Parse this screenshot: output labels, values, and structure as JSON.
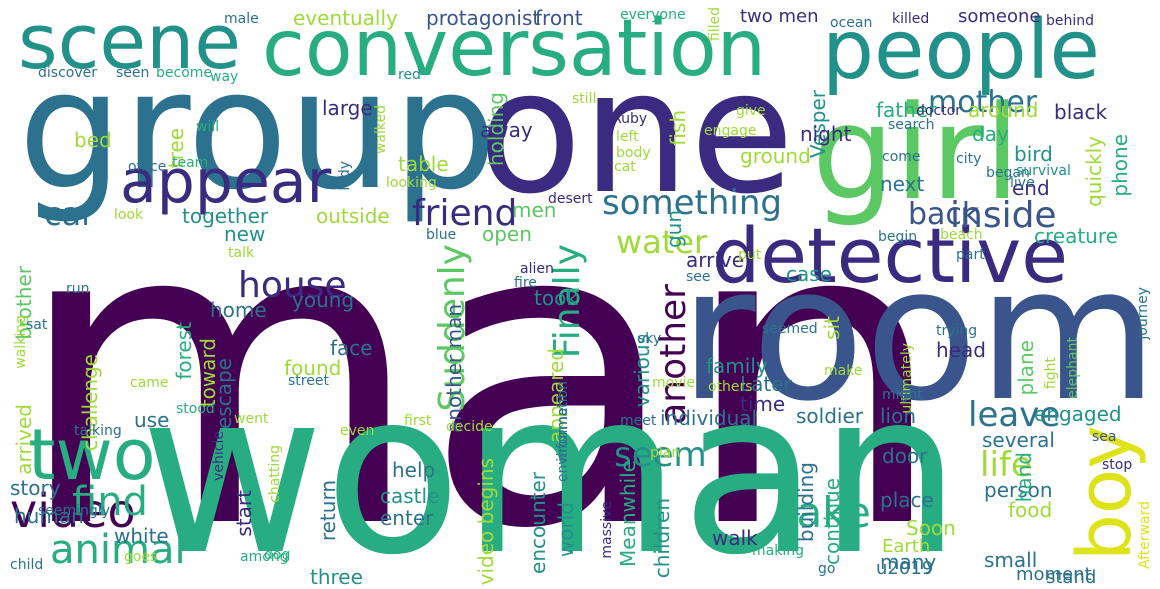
{
  "palette": {
    "dark_purple": "#440154",
    "indigo": "#3b2b80",
    "blue": "#3a548c",
    "teal_blue": "#2c728e",
    "teal": "#22918a",
    "sea_green": "#27ad81",
    "green": "#5cc863",
    "lime": "#a0da39",
    "yellow": "#dde318"
  },
  "words": [
    {
      "text": "man"
    },
    {
      "text": "woman"
    },
    {
      "text": "room"
    },
    {
      "text": "group"
    },
    {
      "text": "one"
    },
    {
      "text": "girl"
    },
    {
      "text": "conversation"
    },
    {
      "text": "people"
    },
    {
      "text": "scene"
    },
    {
      "text": "detective"
    },
    {
      "text": "appear"
    },
    {
      "text": "boy"
    },
    {
      "text": "two"
    },
    {
      "text": "video"
    },
    {
      "text": "animal"
    },
    {
      "text": "find"
    },
    {
      "text": "friend"
    },
    {
      "text": "something"
    },
    {
      "text": "house"
    },
    {
      "text": "take"
    },
    {
      "text": "inside"
    },
    {
      "text": "back"
    },
    {
      "text": "car"
    },
    {
      "text": "water"
    },
    {
      "text": "seem"
    },
    {
      "text": "life"
    },
    {
      "text": "leave"
    },
    {
      "text": "Finally"
    },
    {
      "text": "another"
    },
    {
      "text": "Suddenly"
    },
    {
      "text": "mother"
    },
    {
      "text": "eventually"
    },
    {
      "text": "protagonist"
    },
    {
      "text": "front"
    },
    {
      "text": "two men"
    },
    {
      "text": "someone"
    },
    {
      "text": "Vesper"
    },
    {
      "text": "gun"
    },
    {
      "text": "fish"
    },
    {
      "text": "father"
    },
    {
      "text": "around"
    },
    {
      "text": "black"
    },
    {
      "text": "night"
    },
    {
      "text": "large"
    },
    {
      "text": "away"
    },
    {
      "text": "holding"
    },
    {
      "text": "open"
    },
    {
      "text": "table"
    },
    {
      "text": "ground"
    },
    {
      "text": "day"
    },
    {
      "text": "bird"
    },
    {
      "text": "quickly"
    },
    {
      "text": "phone"
    },
    {
      "text": "end"
    },
    {
      "text": "next"
    },
    {
      "text": "together"
    },
    {
      "text": "outside"
    },
    {
      "text": "men"
    },
    {
      "text": "tree"
    },
    {
      "text": "bed"
    },
    {
      "text": "new"
    },
    {
      "text": "creature"
    },
    {
      "text": "case"
    },
    {
      "text": "arrive"
    },
    {
      "text": "young"
    },
    {
      "text": "another man"
    },
    {
      "text": "took"
    },
    {
      "text": "forest"
    },
    {
      "text": "toward"
    },
    {
      "text": "home"
    },
    {
      "text": "face"
    },
    {
      "text": "challenge"
    },
    {
      "text": "escape"
    },
    {
      "text": "found"
    },
    {
      "text": "Later"
    },
    {
      "text": "family"
    },
    {
      "text": "time"
    },
    {
      "text": "head"
    },
    {
      "text": "sit"
    },
    {
      "text": "various"
    },
    {
      "text": "appeared"
    },
    {
      "text": "plane"
    },
    {
      "text": "individual"
    },
    {
      "text": "soldier"
    },
    {
      "text": "lion"
    },
    {
      "text": "engaged"
    },
    {
      "text": "several"
    },
    {
      "text": "use"
    },
    {
      "text": "arrived"
    },
    {
      "text": "brother"
    },
    {
      "text": "help"
    },
    {
      "text": "story"
    },
    {
      "text": "human"
    },
    {
      "text": "white"
    },
    {
      "text": "start"
    },
    {
      "text": "return"
    },
    {
      "text": "enter"
    },
    {
      "text": "castle"
    },
    {
      "text": "video begins"
    },
    {
      "text": "encounter"
    },
    {
      "text": "world"
    },
    {
      "text": "Meanwhile"
    },
    {
      "text": "children"
    },
    {
      "text": "walk"
    },
    {
      "text": "building"
    },
    {
      "text": "continue"
    },
    {
      "text": "door"
    },
    {
      "text": "place"
    },
    {
      "text": "Soon"
    },
    {
      "text": "person"
    },
    {
      "text": "food"
    },
    {
      "text": "hand"
    },
    {
      "text": "Earth"
    },
    {
      "text": "u2019"
    },
    {
      "text": "many"
    },
    {
      "text": "small"
    },
    {
      "text": "moment"
    },
    {
      "text": "stand"
    },
    {
      "text": "three"
    },
    {
      "text": "child"
    },
    {
      "text": "goes"
    },
    {
      "text": "among"
    },
    {
      "text": "dog"
    },
    {
      "text": "massive"
    },
    {
      "text": "making"
    },
    {
      "text": "go"
    },
    {
      "text": "stop"
    },
    {
      "text": "Afterward"
    },
    {
      "text": "sea"
    },
    {
      "text": "seemingly"
    },
    {
      "text": "talking"
    },
    {
      "text": "vehicle"
    },
    {
      "text": "chatting"
    },
    {
      "text": "even"
    },
    {
      "text": "decide"
    },
    {
      "text": "first"
    },
    {
      "text": "plan"
    },
    {
      "text": "meet"
    },
    {
      "text": "male"
    },
    {
      "text": "everyone"
    },
    {
      "text": "filled"
    },
    {
      "text": "ocean"
    },
    {
      "text": "killed"
    },
    {
      "text": "behind"
    },
    {
      "text": "discover"
    },
    {
      "text": "seen"
    },
    {
      "text": "become"
    },
    {
      "text": "way"
    },
    {
      "text": "still"
    },
    {
      "text": "red"
    },
    {
      "text": "lady"
    },
    {
      "text": "walked"
    },
    {
      "text": "Ruby"
    },
    {
      "text": "give"
    },
    {
      "text": "engage"
    },
    {
      "text": "doctor"
    },
    {
      "text": "will"
    },
    {
      "text": "search"
    },
    {
      "text": "left"
    },
    {
      "text": "body"
    },
    {
      "text": "cat"
    },
    {
      "text": "office"
    },
    {
      "text": "team"
    },
    {
      "text": "looking"
    },
    {
      "text": "come"
    },
    {
      "text": "city"
    },
    {
      "text": "began"
    },
    {
      "text": "survival"
    },
    {
      "text": "live"
    },
    {
      "text": "look"
    },
    {
      "text": "desert"
    },
    {
      "text": "blue"
    },
    {
      "text": "beach"
    },
    {
      "text": "begin"
    },
    {
      "text": "part"
    },
    {
      "text": "put"
    },
    {
      "text": "talk"
    },
    {
      "text": "alien"
    },
    {
      "text": "fire"
    },
    {
      "text": "see"
    },
    {
      "text": "sat"
    },
    {
      "text": "run"
    },
    {
      "text": "walking"
    },
    {
      "text": "journey"
    },
    {
      "text": "sky"
    },
    {
      "text": "seemed"
    },
    {
      "text": "ultimately"
    },
    {
      "text": "trying"
    },
    {
      "text": "fight"
    },
    {
      "text": "elephant"
    },
    {
      "text": "information"
    },
    {
      "text": "environment"
    },
    {
      "text": "others"
    },
    {
      "text": "make"
    },
    {
      "text": "stood"
    },
    {
      "text": "came"
    },
    {
      "text": "went"
    },
    {
      "text": "street"
    },
    {
      "text": "movie"
    },
    {
      "text": "might"
    }
  ]
}
